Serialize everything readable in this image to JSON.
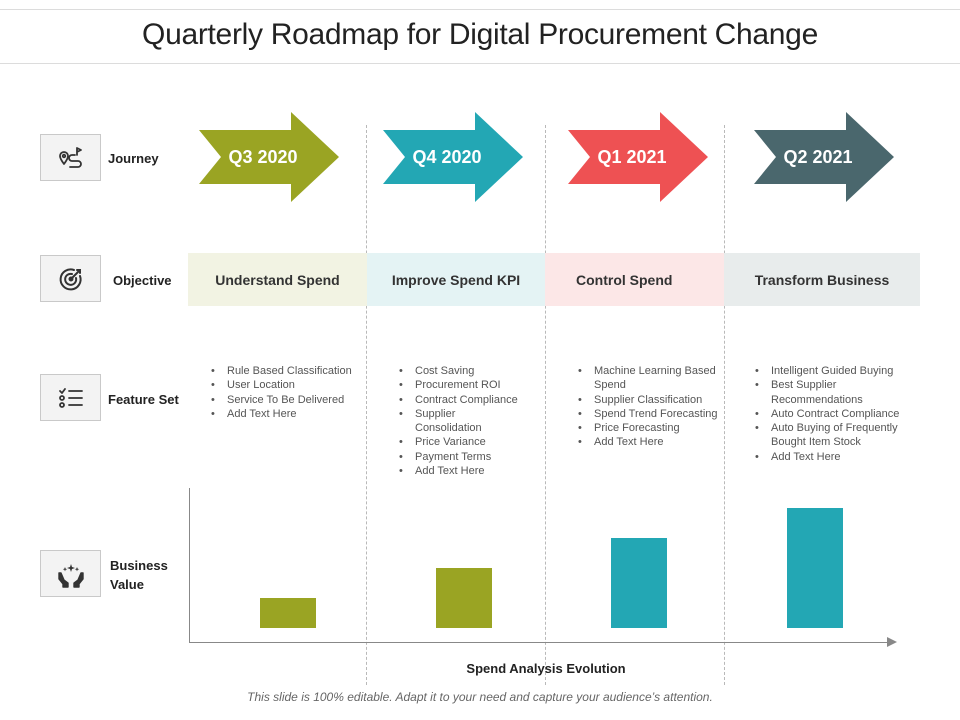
{
  "title": "Quarterly Roadmap for Digital Procurement Change",
  "rows": {
    "journey": {
      "label": "Journey",
      "icon": "route-pin-icon"
    },
    "objective": {
      "label": "Objective",
      "icon": "target-icon"
    },
    "feature_set": {
      "label": "Feature Set",
      "icon": "checklist-icon"
    },
    "business_value": {
      "label_line1": "Business",
      "label_line2": "Value",
      "icon": "hands-sparkle-icon"
    }
  },
  "quarters": [
    {
      "label": "Q3 2020",
      "color": "#9aa423",
      "band_color": "#f2f3e3",
      "objective": "Understand Spend",
      "features": [
        "Rule Based Classification",
        "User Location",
        "Service To Be Delivered",
        "Add Text Here"
      ]
    },
    {
      "label": "Q4 2020",
      "color": "#23a7b4",
      "band_color": "#e4f3f4",
      "objective": "Improve Spend KPI",
      "features": [
        "Cost Saving",
        "Procurement ROI",
        "Contract Compliance",
        "Supplier Consolidation",
        "Price Variance",
        "Payment Terms",
        "Add Text Here"
      ]
    },
    {
      "label": "Q1 2021",
      "color": "#ee5153",
      "band_color": "#fce7e7",
      "objective": "Control Spend",
      "features": [
        "Machine Learning Based Spend",
        "Supplier Classification",
        "Spend Trend Forecasting",
        "Price Forecasting",
        "Add Text Here"
      ]
    },
    {
      "label": "Q2 2021",
      "color": "#4a676d",
      "band_color": "#e8ecec",
      "objective": "Transform Business",
      "features": [
        "Intelligent Guided Buying",
        "Best Supplier Recommendations",
        "Auto Contract Compliance",
        "Auto Buying of Frequently Bought Item Stock",
        "Add Text Here"
      ]
    }
  ],
  "chart_data": {
    "type": "bar",
    "categories": [
      "Q3 2020",
      "Q4 2020",
      "Q1 2021",
      "Q2 2021"
    ],
    "values": [
      2,
      4,
      6,
      8
    ],
    "colors": [
      "#9aa423",
      "#9aa423",
      "#23a7b4",
      "#23a7b4"
    ],
    "xlabel": "Spend Analysis Evolution",
    "ylabel": "",
    "ylim": [
      0,
      9.5
    ]
  },
  "footer": "This slide is 100% editable. Adapt it to your need and capture your audience’s attention."
}
